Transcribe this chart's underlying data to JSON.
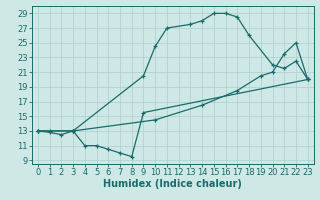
{
  "xlabel": "Humidex (Indice chaleur)",
  "bg_color": "#cde8e5",
  "line_color": "#1a6b6b",
  "grid_color": "#aecfcc",
  "xlim": [
    -0.5,
    23.5
  ],
  "ylim": [
    8.5,
    30.0
  ],
  "xticks": [
    0,
    1,
    2,
    3,
    4,
    5,
    6,
    7,
    8,
    9,
    10,
    11,
    12,
    13,
    14,
    15,
    16,
    17,
    18,
    19,
    20,
    21,
    22,
    23
  ],
  "yticks": [
    9,
    11,
    13,
    15,
    17,
    19,
    21,
    23,
    25,
    27,
    29
  ],
  "line_top_x": [
    0,
    1,
    3,
    9,
    10,
    11,
    13,
    14,
    15,
    16,
    17,
    18,
    20,
    21,
    22,
    23
  ],
  "line_top_y": [
    13,
    13,
    13,
    20.5,
    24.5,
    27.0,
    27.5,
    28.0,
    29.0,
    29.0,
    28.5,
    26.0,
    22.0,
    21.5,
    22.5,
    20.0
  ],
  "line_mid_x": [
    0,
    3,
    10,
    14,
    17,
    19,
    20,
    21,
    22,
    23
  ],
  "line_mid_y": [
    13,
    13,
    14.5,
    16.5,
    18.5,
    20.5,
    21.0,
    23.5,
    25.0,
    20.0
  ],
  "line_bot_x": [
    0,
    1,
    2,
    3,
    4,
    5,
    6,
    7,
    8,
    9,
    23
  ],
  "line_bot_y": [
    13,
    12.8,
    12.5,
    13.0,
    11.0,
    11.0,
    10.5,
    10.0,
    9.5,
    15.5,
    20.0
  ],
  "xlabel_fontsize": 7,
  "tick_fontsize": 6
}
